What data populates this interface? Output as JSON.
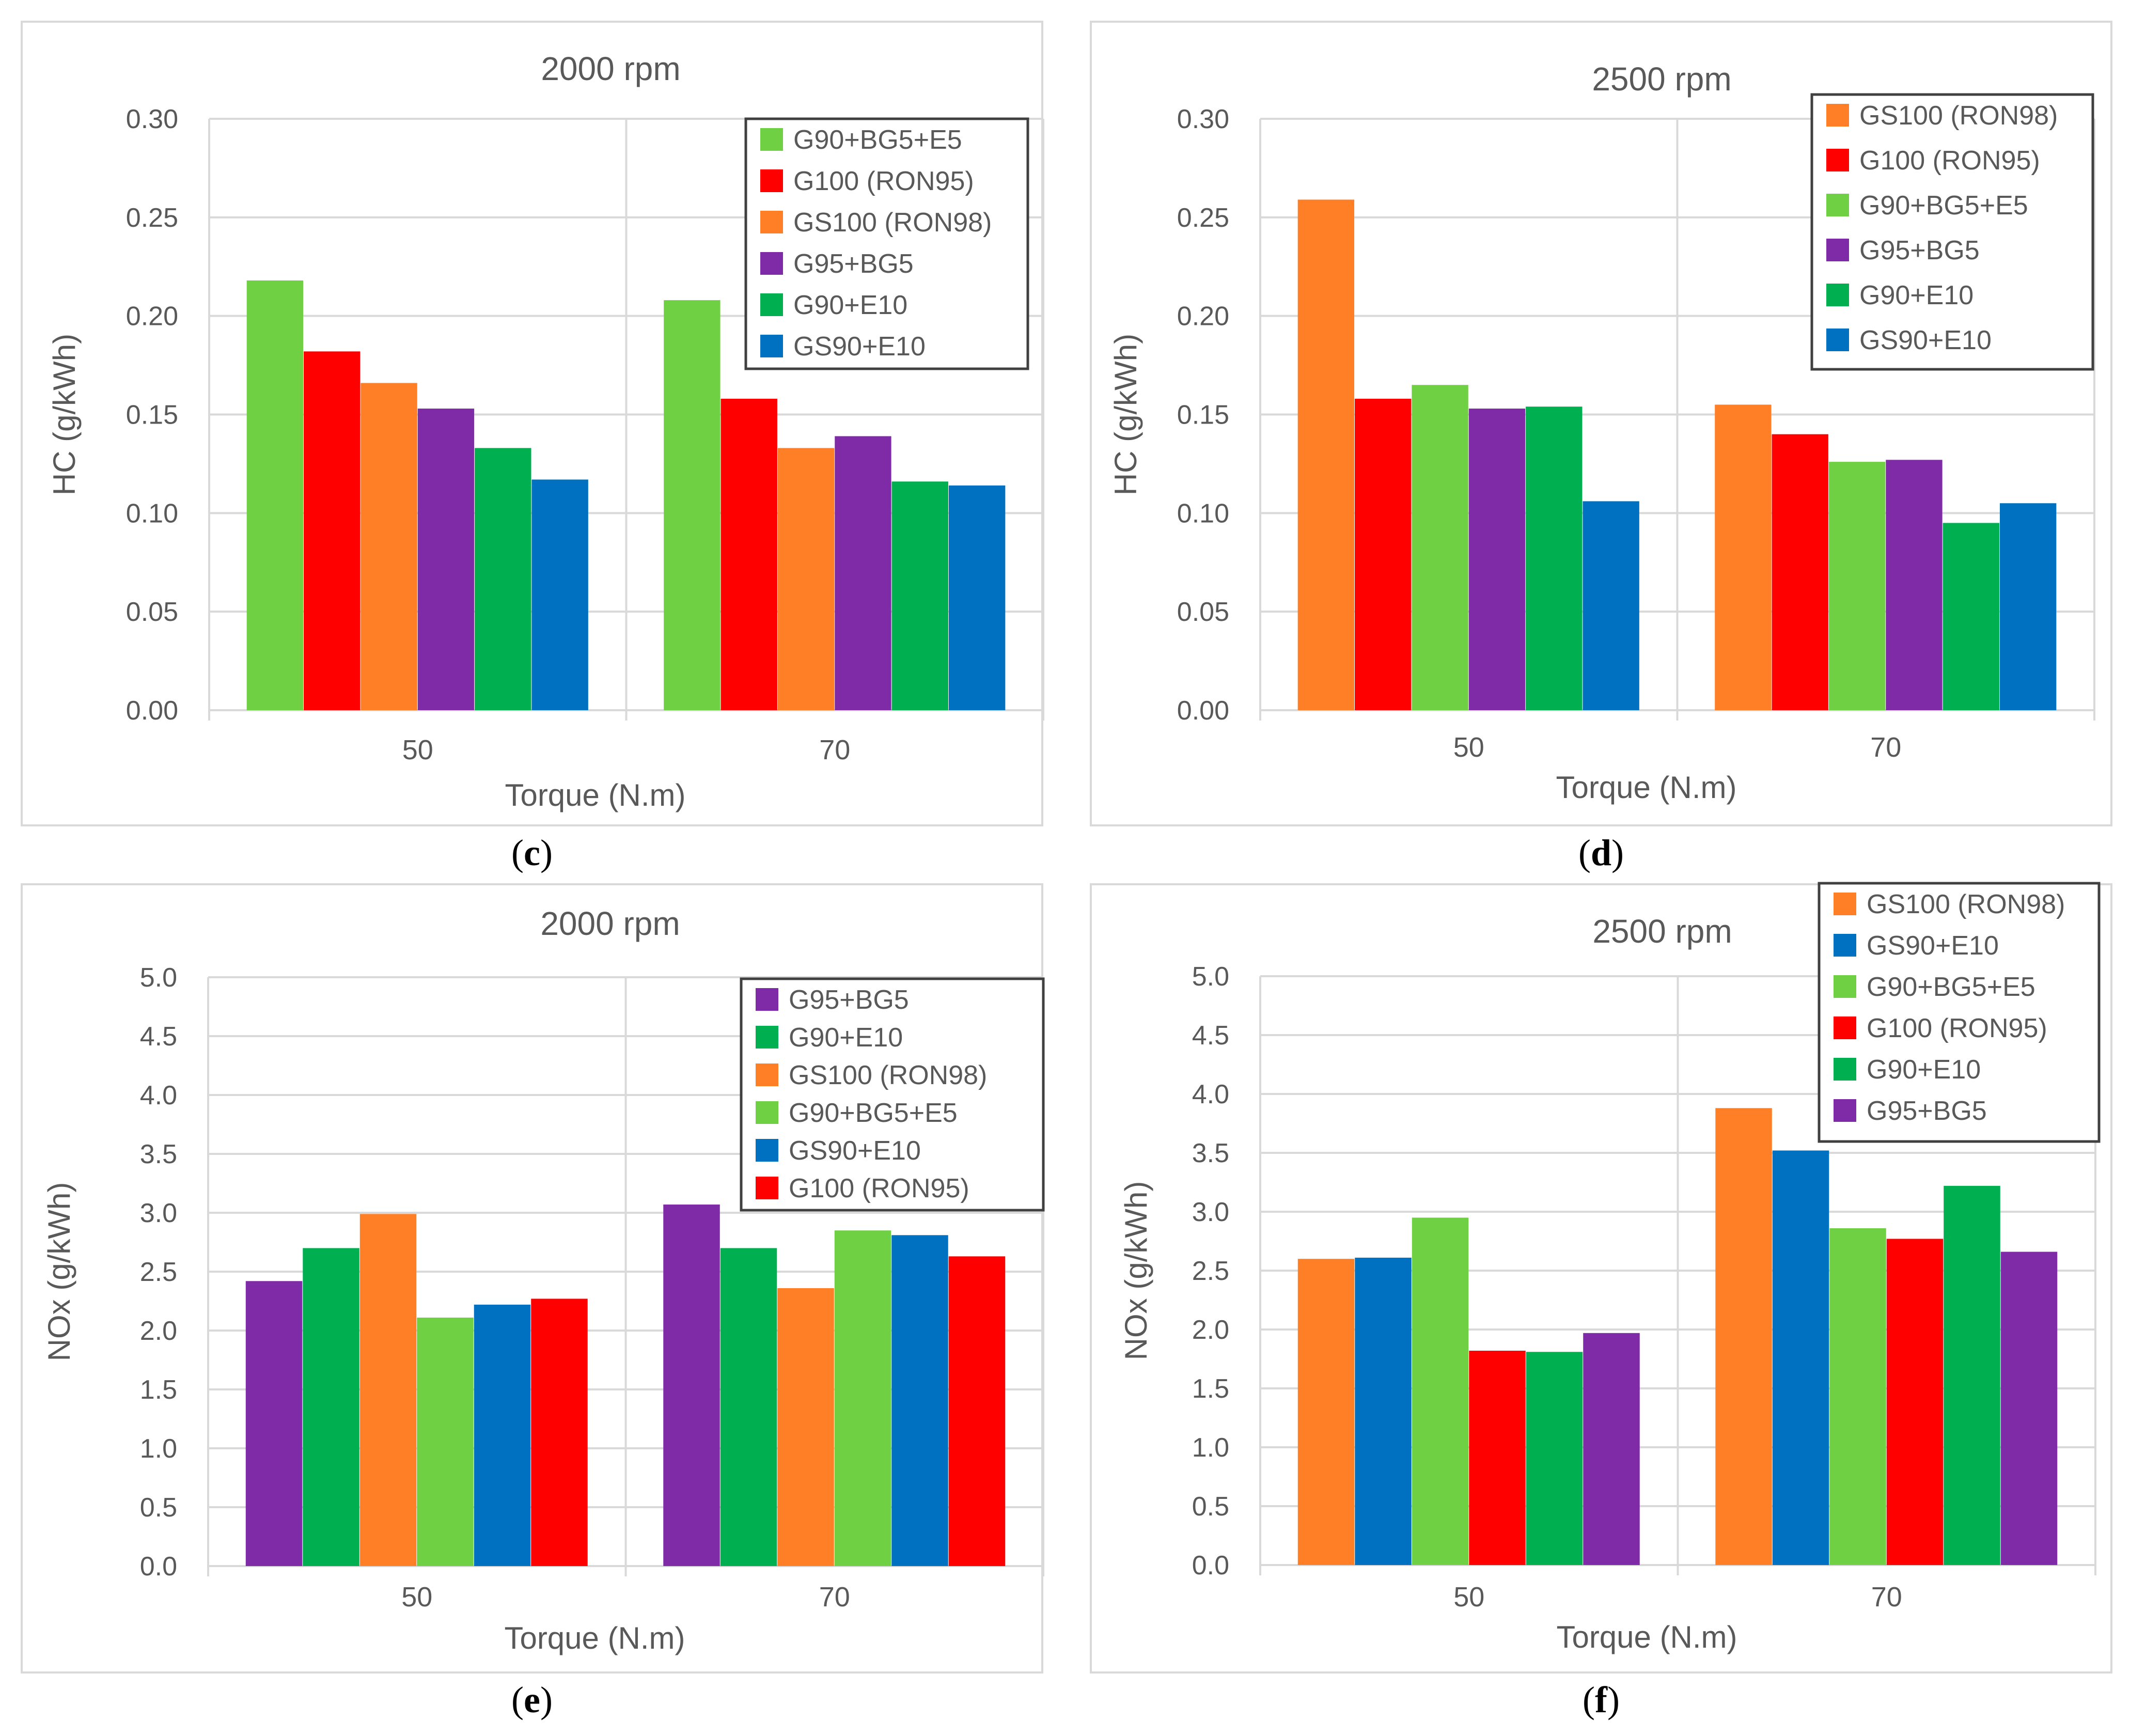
{
  "colors": {
    "G90+BG5+E5": "#70d044",
    "G100 (RON95)": "#ff0000",
    "GS100 (RON98)": "#ff7f27",
    "G95+BG5": "#7f2aa6",
    "G90+E10": "#00b050",
    "GS90+E10": "#0070c0",
    "grid": "#d9d9d9",
    "text": "#595959"
  },
  "chart_data": [
    {
      "id": "c",
      "type": "bar",
      "caption_label": "c",
      "title": "2000 rpm",
      "xlabel": "Torque  (N.m)",
      "ylabel": "HC (g/kWh)",
      "ylim": [
        0,
        0.3
      ],
      "yticks": [
        "0.00",
        "0.05",
        "0.10",
        "0.15",
        "0.20",
        "0.25",
        "0.30"
      ],
      "categories": [
        "50",
        "70"
      ],
      "legend_position": "top-right",
      "series": [
        {
          "name": "G90+BG5+E5",
          "values": [
            0.218,
            0.208
          ]
        },
        {
          "name": "G100 (RON95)",
          "values": [
            0.182,
            0.158
          ]
        },
        {
          "name": "GS100 (RON98)",
          "values": [
            0.166,
            0.133
          ]
        },
        {
          "name": "G95+BG5",
          "values": [
            0.153,
            0.139
          ]
        },
        {
          "name": "G90+E10",
          "values": [
            0.133,
            0.116
          ]
        },
        {
          "name": "GS90+E10",
          "values": [
            0.117,
            0.114
          ]
        }
      ]
    },
    {
      "id": "d",
      "type": "bar",
      "caption_label": "d",
      "title": "2500 rpm",
      "xlabel": "Torque (N.m)",
      "ylabel": "HC (g/kWh)",
      "ylim": [
        0,
        0.3
      ],
      "yticks": [
        "0.00",
        "0.05",
        "0.10",
        "0.15",
        "0.20",
        "0.25",
        "0.30"
      ],
      "categories": [
        "50",
        "70"
      ],
      "legend_position": "top-right",
      "series": [
        {
          "name": "GS100 (RON98)",
          "values": [
            0.259,
            0.155
          ]
        },
        {
          "name": "G100 (RON95)",
          "values": [
            0.158,
            0.14
          ]
        },
        {
          "name": "G90+BG5+E5",
          "values": [
            0.165,
            0.126
          ]
        },
        {
          "name": "G95+BG5",
          "values": [
            0.153,
            0.127
          ]
        },
        {
          "name": "G90+E10",
          "values": [
            0.154,
            0.095
          ]
        },
        {
          "name": "GS90+E10",
          "values": [
            0.106,
            0.105
          ]
        }
      ]
    },
    {
      "id": "e",
      "type": "bar",
      "caption_label": "e",
      "title": "2000 rpm",
      "xlabel": "Torque (N.m)",
      "ylabel": "NOx (g/kWh)",
      "ylim": [
        0,
        5
      ],
      "yticks": [
        "0.0",
        "0.5",
        "1.0",
        "1.5",
        "2.0",
        "2.5",
        "3.0",
        "3.5",
        "4.0",
        "4.5",
        "5.0"
      ],
      "categories": [
        "50",
        "70"
      ],
      "legend_position": "top-right",
      "series": [
        {
          "name": "G95+BG5",
          "values": [
            2.42,
            3.07
          ]
        },
        {
          "name": "G90+E10",
          "values": [
            2.7,
            2.7
          ]
        },
        {
          "name": "GS100 (RON98)",
          "values": [
            2.99,
            2.36
          ]
        },
        {
          "name": "G90+BG5+E5",
          "values": [
            2.11,
            2.85
          ]
        },
        {
          "name": "GS90+E10",
          "values": [
            2.22,
            2.81
          ]
        },
        {
          "name": "G100 (RON95)",
          "values": [
            2.27,
            2.63
          ]
        }
      ]
    },
    {
      "id": "f",
      "type": "bar",
      "caption_label": "f",
      "title": "2500 rpm",
      "xlabel": "Torque (N.m)",
      "ylabel": "NOx (g/kWh)",
      "ylim": [
        0,
        5
      ],
      "yticks": [
        "0.0",
        "0.5",
        "1.0",
        "1.5",
        "2.0",
        "2.5",
        "3.0",
        "3.5",
        "4.0",
        "4.5",
        "5.0"
      ],
      "categories": [
        "50",
        "70"
      ],
      "legend_position": "top-right",
      "series": [
        {
          "name": "GS100 (RON98)",
          "values": [
            2.6,
            3.88
          ]
        },
        {
          "name": "GS90+E10",
          "values": [
            2.61,
            3.52
          ]
        },
        {
          "name": "G90+BG5+E5",
          "values": [
            2.95,
            2.86
          ]
        },
        {
          "name": "G100 (RON95)",
          "values": [
            1.82,
            2.77
          ]
        },
        {
          "name": "G90+E10",
          "values": [
            1.81,
            3.22
          ]
        },
        {
          "name": "G95+BG5",
          "values": [
            1.97,
            2.66
          ]
        }
      ]
    }
  ]
}
